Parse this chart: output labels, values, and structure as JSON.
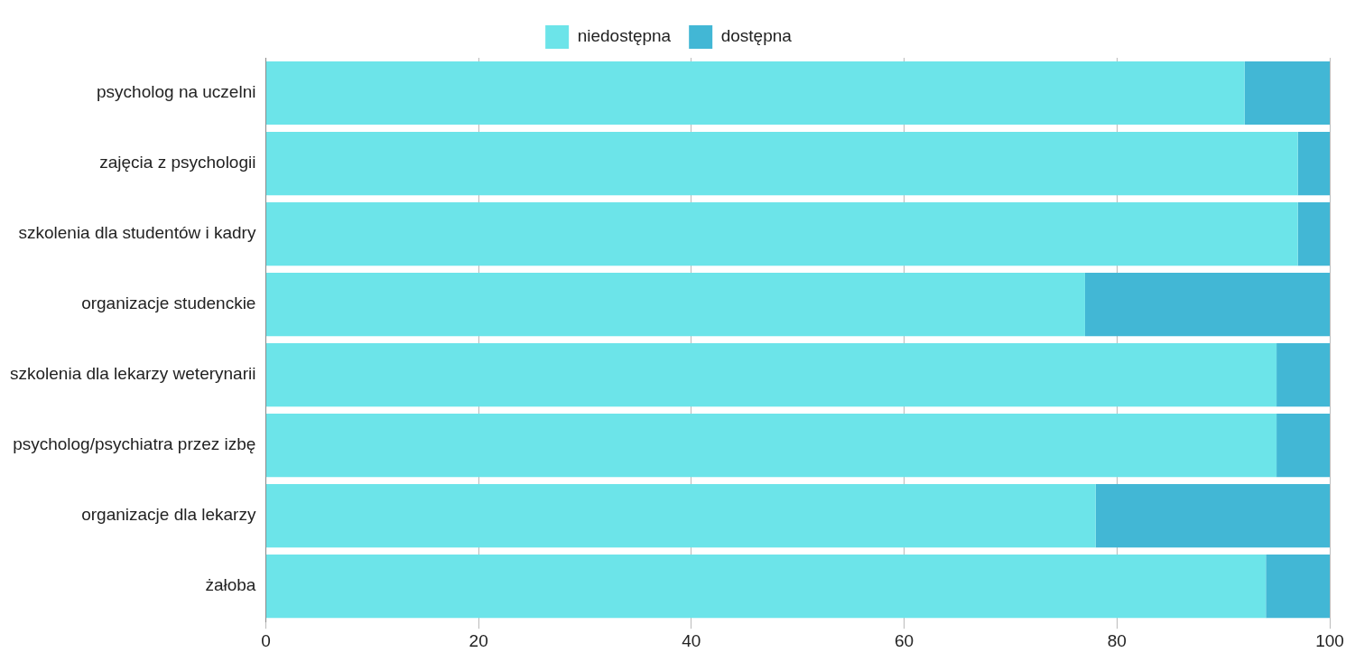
{
  "chart_data": {
    "type": "bar",
    "orientation": "horizontal",
    "stacked": true,
    "categories": [
      "psycholog na uczelni",
      "zajęcia z psychologii",
      "szkolenia dla studentów i kadry",
      "organizacje studenckie",
      "szkolenia dla lekarzy weterynarii",
      "psycholog/psychiatra przez izbę",
      "organizacje dla lekarzy",
      "żałoba"
    ],
    "series": [
      {
        "name": "niedostępna",
        "color": "#6ce4e9",
        "values": [
          92,
          97,
          97,
          77,
          95,
          95,
          78,
          94
        ]
      },
      {
        "name": "dostępna",
        "color": "#42b7d5",
        "values": [
          8,
          3,
          3,
          23,
          5,
          5,
          22,
          6
        ]
      }
    ],
    "xlim": [
      0,
      100
    ],
    "xticks": [
      0,
      20,
      40,
      60,
      80,
      100
    ],
    "grid": "x",
    "legend": "top"
  }
}
